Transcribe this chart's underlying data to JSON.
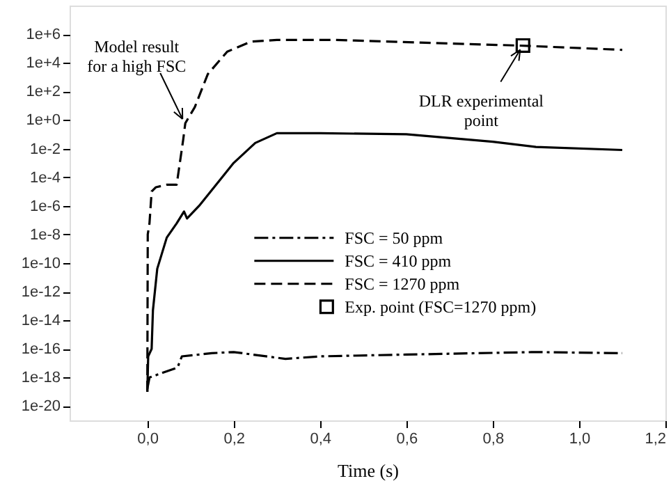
{
  "chart_data": {
    "type": "line",
    "xlabel": "Time (s)",
    "log": "y",
    "grid": false,
    "legend": "right",
    "xlim": [
      -0.18,
      1.2
    ],
    "ylim": [
      1e-21,
      100000000.0
    ],
    "xticks": [
      {
        "value": 0,
        "label": "0,0"
      },
      {
        "value": 0.2,
        "label": "0,2"
      },
      {
        "value": 0.4,
        "label": "0,4"
      },
      {
        "value": 0.6,
        "label": "0,6"
      },
      {
        "value": 0.8,
        "label": "0,8"
      },
      {
        "value": 1.0,
        "label": "1,0"
      },
      {
        "value": 1.2,
        "label": "1,2"
      }
    ],
    "yticks": [
      {
        "value": 1e-20,
        "label": "1e-20"
      },
      {
        "value": 1e-18,
        "label": "1e-18"
      },
      {
        "value": 1e-16,
        "label": "1e-16"
      },
      {
        "value": 1e-14,
        "label": "1e-14"
      },
      {
        "value": 1e-12,
        "label": "1e-12"
      },
      {
        "value": 1e-10,
        "label": "1e-10"
      },
      {
        "value": 1e-08,
        "label": "1e-8"
      },
      {
        "value": 1e-06,
        "label": "1e-6"
      },
      {
        "value": 0.0001,
        "label": "1e-4"
      },
      {
        "value": 0.01,
        "label": "1e-2"
      },
      {
        "value": 1,
        "label": "1e+0"
      },
      {
        "value": 100,
        "label": "1e+2"
      },
      {
        "value": 10000,
        "label": "1e+4"
      },
      {
        "value": 1000000,
        "label": "1e+6"
      }
    ],
    "series": [
      {
        "name": "FSC = 50 ppm",
        "color": "#000000",
        "line_style": "dashdot",
        "marker": "none",
        "x": [
          0,
          0.005,
          0.07,
          0.08,
          0.15,
          0.2,
          0.32,
          0.4,
          0.6,
          0.9,
          1.1
        ],
        "values": [
          1.6e-19,
          1e-18,
          5e-18,
          3e-17,
          5e-17,
          6e-17,
          2e-17,
          3e-17,
          4e-17,
          6e-17,
          5e-17
        ]
      },
      {
        "name": "FSC = 410 ppm",
        "color": "#000000",
        "line_style": "solid",
        "marker": "none",
        "x": [
          0,
          0.002,
          0.01,
          0.013,
          0.023,
          0.045,
          0.068,
          0.085,
          0.092,
          0.12,
          0.2,
          0.25,
          0.3,
          0.4,
          0.6,
          0.8,
          0.9,
          1.1
        ],
        "values": [
          1e-19,
          3e-17,
          1e-16,
          5e-14,
          4e-11,
          6e-09,
          6e-08,
          4e-07,
          1.3e-07,
          1e-06,
          0.001,
          0.025,
          0.12,
          0.12,
          0.1,
          0.03,
          0.013,
          0.008
        ]
      },
      {
        "name": "FSC = 1270 ppm",
        "color": "#000000",
        "line_style": "dashed",
        "marker": "none",
        "x": [
          0,
          0.001,
          0.005,
          0.01,
          0.02,
          0.045,
          0.068,
          0.083,
          0.088,
          0.11,
          0.14,
          0.185,
          0.24,
          0.3,
          0.43,
          0.86,
          1.1
        ],
        "values": [
          1e-19,
          1e-08,
          6e-08,
          1e-05,
          2e-05,
          3e-05,
          3e-05,
          0.04,
          0.6,
          8,
          1600.0,
          60000.0,
          300000.0,
          400000.0,
          400000.0,
          160000.0,
          80000.0
        ]
      },
      {
        "name": "Exp. point (FSC=1270 ppm)",
        "type": "scatter",
        "color": "#000000",
        "marker": "square",
        "x": [
          0.87
        ],
        "values": [
          160000.0
        ]
      }
    ],
    "annotations": [
      {
        "text": "Model result\nfor a high FSC",
        "x": 0.088,
        "y": 0.6
      },
      {
        "text": "DLR experimental\npoint",
        "x": 0.87,
        "y": 160000.0
      }
    ]
  }
}
